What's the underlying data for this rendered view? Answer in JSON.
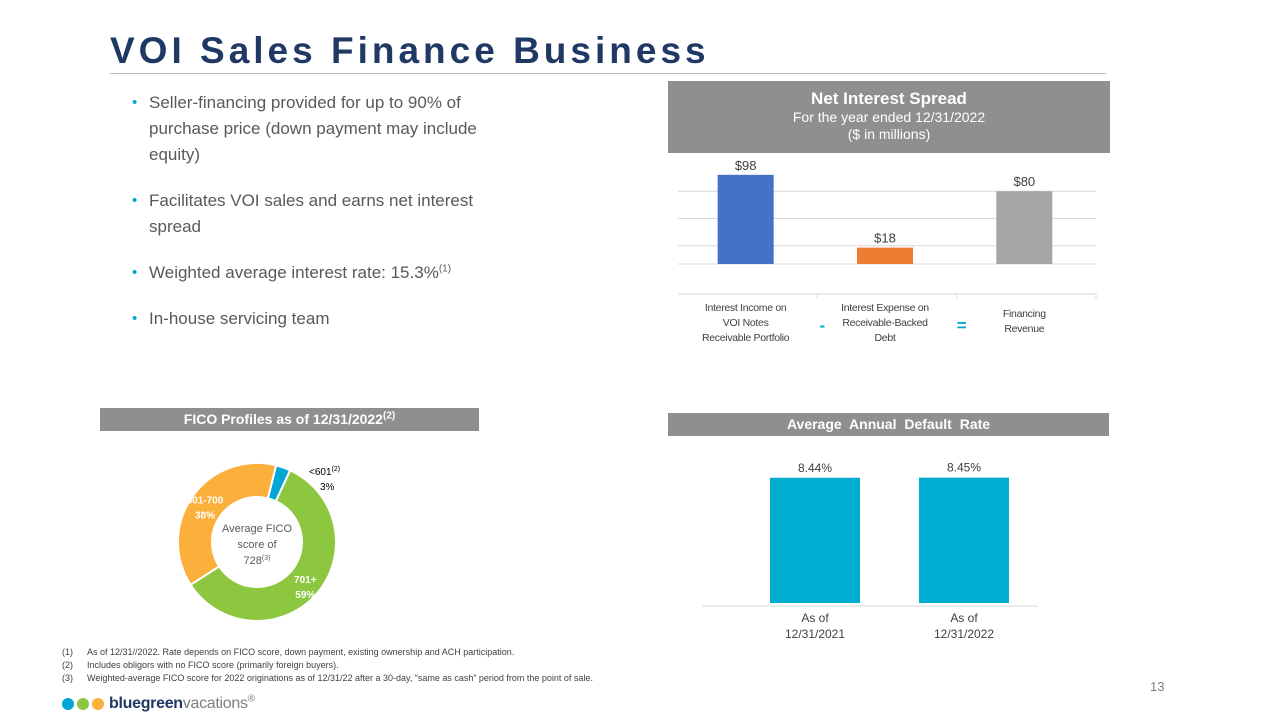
{
  "title": "VOI Sales Finance Business",
  "bullets": [
    {
      "text": "Seller-financing provided for up to 90% of purchase price (down payment may include equity)",
      "sup": ""
    },
    {
      "text": "Facilitates VOI sales and earns net interest spread",
      "sup": ""
    },
    {
      "text": "Weighted average interest rate: 15.3%",
      "sup": "(1)"
    },
    {
      "text": "In-house servicing team",
      "sup": ""
    }
  ],
  "net_interest": {
    "title": "Net Interest Spread",
    "subtitle": "For the year ended 12/31/2022",
    "units": "($ in millions)",
    "operators": [
      "-",
      "="
    ]
  },
  "fico": {
    "header": "FICO Profiles as of 12/31/2022",
    "header_sup": "(2)",
    "center_lines": [
      "Average FICO",
      "score of",
      "728"
    ],
    "center_sup": "(3)",
    "small_sup": "(2)"
  },
  "default_rate": {
    "header": "Average Annual Default Rate"
  },
  "chart_data": [
    {
      "type": "bar",
      "categories": [
        "Interest Income on VOI Notes Receivable Portfolio",
        "Interest Expense on Receivable-Backed Debt",
        "Financing Revenue"
      ],
      "category_lines": [
        [
          "Interest Income on",
          "VOI Notes",
          "Receivable Portfolio"
        ],
        [
          "Interest Expense on",
          "Receivable-Backed",
          "Debt"
        ],
        [
          "Financing",
          "Revenue"
        ]
      ],
      "values": [
        98,
        18,
        80
      ],
      "labels": [
        "$98",
        "$18",
        "$80"
      ],
      "colors": [
        "#4472c4",
        "#ed7d31",
        "#a5a5a5"
      ],
      "ylim": [
        0,
        100
      ],
      "grid": true
    },
    {
      "type": "pie",
      "slices": [
        {
          "label": "<601",
          "value": 3,
          "value_label": "3%",
          "color": "#00a6d6"
        },
        {
          "label": "701+",
          "value": 59,
          "value_label": "59%",
          "color": "#8dc63f"
        },
        {
          "label": "601-700",
          "value": 38,
          "value_label": "38%",
          "color": "#fbb03b"
        }
      ]
    },
    {
      "type": "bar",
      "categories": [
        "As of 12/31/2021",
        "As of 12/31/2022"
      ],
      "category_lines": [
        [
          "As of",
          "12/31/2021"
        ],
        [
          "As of",
          "12/31/2022"
        ]
      ],
      "values": [
        8.44,
        8.45
      ],
      "labels": [
        "8.44%",
        "8.45%"
      ],
      "color": "#00acd0",
      "ylim": [
        0,
        9.3
      ]
    }
  ],
  "footnotes": [
    {
      "num": "(1)",
      "text": "As of 12/31//2022.  Rate depends on FICO  score, down payment, existing ownership and ACH participation."
    },
    {
      "num": "(2)",
      "text": "Includes obligors with no FICO  score (primarily foreign buyers)."
    },
    {
      "num": "(3)",
      "text": "Weighted-average FICO  score for 2022 originations as of 12/31/22 after a 30-day, “same as cash” period from the point of sale."
    }
  ],
  "page_number": "13",
  "logo": {
    "brand": "bluegreen",
    "suffix": "vacations",
    "mark": "®",
    "dot_colors": [
      "#00a6d6",
      "#8dc63f",
      "#fbb03b"
    ]
  }
}
